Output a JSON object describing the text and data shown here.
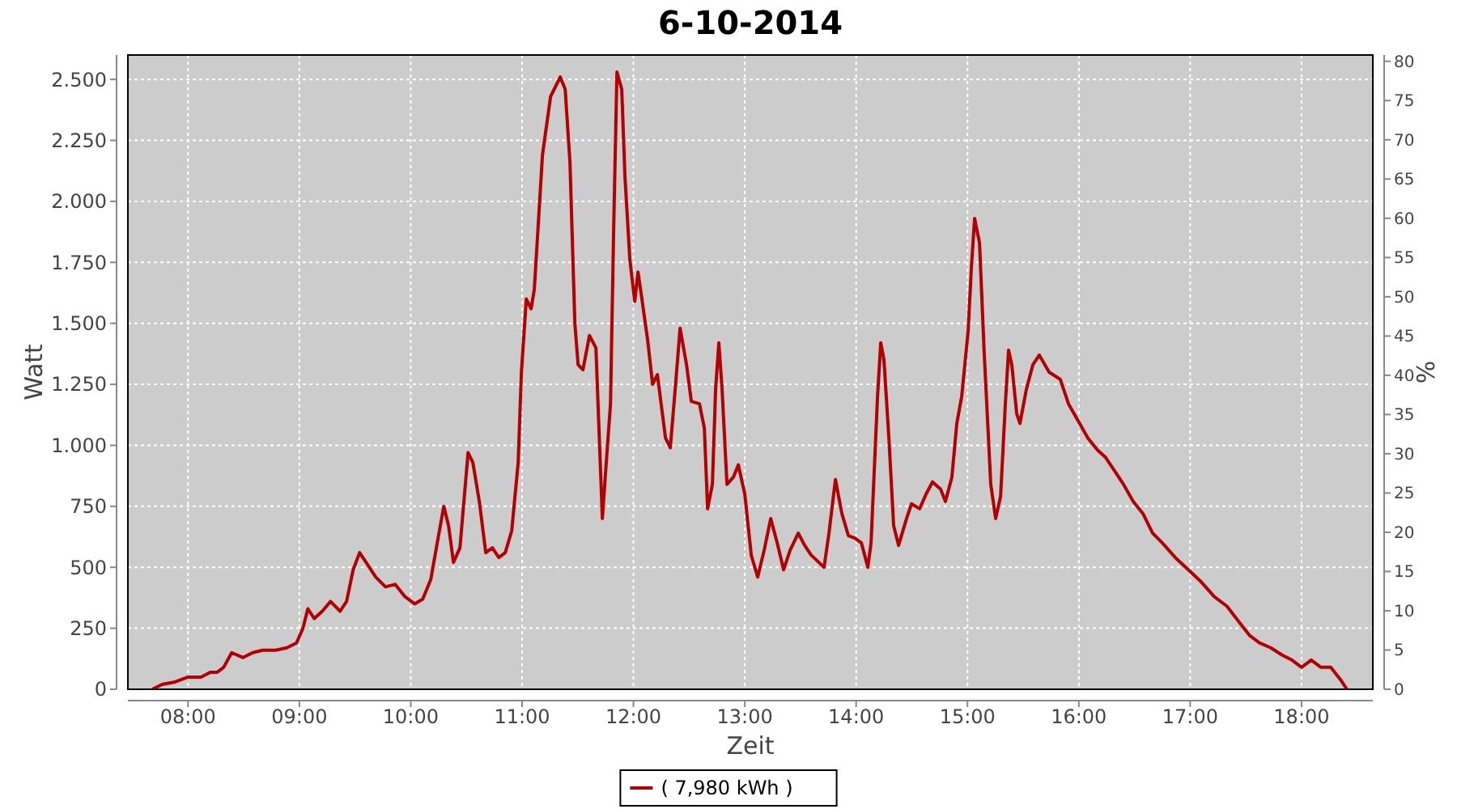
{
  "chart_data": {
    "type": "line",
    "title": "6-10-2014",
    "xlabel": "Zeit",
    "ylabel": "Watt",
    "y2label": "%",
    "xlim": [
      7.46,
      18.64
    ],
    "xticks": [
      {
        "value": 8,
        "label": "08:00"
      },
      {
        "value": 9,
        "label": "09:00"
      },
      {
        "value": 10,
        "label": "10:00"
      },
      {
        "value": 11,
        "label": "11:00"
      },
      {
        "value": 12,
        "label": "12:00"
      },
      {
        "value": 13,
        "label": "13:00"
      },
      {
        "value": 14,
        "label": "14:00"
      },
      {
        "value": 15,
        "label": "15:00"
      },
      {
        "value": 16,
        "label": "16:00"
      },
      {
        "value": 17,
        "label": "17:00"
      },
      {
        "value": 18,
        "label": "18:00"
      }
    ],
    "ylim": [
      0,
      2600
    ],
    "yticks": [
      0,
      250,
      500,
      750,
      {
        "value": 1000,
        "label": "1.000"
      },
      {
        "value": 1250,
        "label": "1.250"
      },
      {
        "value": 1500,
        "label": "1.500"
      },
      {
        "value": 1750,
        "label": "1.750"
      },
      {
        "value": 2000,
        "label": "2.000"
      },
      {
        "value": 2250,
        "label": "2.250"
      },
      {
        "value": 2500,
        "label": "2.500"
      }
    ],
    "y2lim": [
      0,
      80.8
    ],
    "y2ticks": [
      0,
      5,
      10,
      15,
      20,
      25,
      30,
      35,
      40,
      45,
      50,
      55,
      60,
      65,
      70,
      75,
      80
    ],
    "grid": true,
    "legend": "bottom",
    "x": [
      7.68,
      7.767,
      7.884,
      8,
      8.116,
      8.203,
      8.262,
      8.32,
      8.392,
      8.494,
      8.581,
      8.669,
      8.785,
      8.887,
      8.974,
      9.032,
      9.076,
      9.134,
      9.206,
      9.279,
      9.366,
      9.424,
      9.483,
      9.541,
      9.599,
      9.686,
      9.773,
      9.86,
      9.948,
      10.035,
      10.108,
      10.18,
      10.238,
      10.297,
      10.34,
      10.384,
      10.442,
      10.515,
      10.558,
      10.616,
      10.674,
      10.733,
      10.791,
      10.849,
      10.907,
      10.965,
      10.994,
      11.038,
      11.081,
      11.11,
      11.183,
      11.256,
      11.343,
      11.387,
      11.43,
      11.474,
      11.503,
      11.547,
      11.605,
      11.663,
      11.721,
      11.75,
      11.794,
      11.823,
      11.852,
      11.895,
      11.924,
      11.968,
      12.012,
      12.041,
      12.07,
      12.128,
      12.172,
      12.215,
      12.288,
      12.331,
      12.375,
      12.419,
      12.477,
      12.52,
      12.593,
      12.637,
      12.666,
      12.709,
      12.738,
      12.767,
      12.796,
      12.84,
      12.898,
      12.942,
      13,
      13.058,
      13.116,
      13.174,
      13.233,
      13.291,
      13.349,
      13.407,
      13.48,
      13.538,
      13.596,
      13.712,
      13.756,
      13.814,
      13.872,
      13.93,
      13.988,
      14.047,
      14.105,
      14.134,
      14.192,
      14.221,
      14.25,
      14.294,
      14.337,
      14.381,
      14.453,
      14.497,
      14.57,
      14.628,
      14.686,
      14.759,
      14.802,
      14.86,
      14.904,
      14.948,
      15.006,
      15.035,
      15.064,
      15.108,
      15.151,
      15.209,
      15.253,
      15.297,
      15.34,
      15.369,
      15.398,
      15.442,
      15.471,
      15.529,
      15.587,
      15.645,
      15.733,
      15.834,
      15.907,
      15.994,
      16.081,
      16.169,
      16.241,
      16.314,
      16.401,
      16.488,
      16.576,
      16.663,
      16.75,
      16.866,
      16.983,
      17.099,
      17.215,
      17.331,
      17.448,
      17.535,
      17.622,
      17.724,
      17.826,
      17.913,
      18,
      18.087,
      18.174,
      18.262,
      18.349,
      18.407
    ],
    "series": [
      {
        "name": "( 7,980 kWh )",
        "color": "#b40000",
        "values": [
          0,
          20,
          30,
          50,
          50,
          70,
          70,
          90,
          150,
          130,
          150,
          160,
          160,
          170,
          190,
          250,
          330,
          290,
          320,
          360,
          320,
          360,
          490,
          560,
          520,
          460,
          420,
          430,
          380,
          350,
          370,
          450,
          600,
          750,
          670,
          520,
          580,
          970,
          930,
          770,
          560,
          580,
          540,
          560,
          650,
          930,
          1300,
          1600,
          1560,
          1640,
          2190,
          2430,
          2510,
          2460,
          2160,
          1500,
          1330,
          1310,
          1450,
          1400,
          700,
          890,
          1170,
          1900,
          2530,
          2460,
          2100,
          1760,
          1590,
          1710,
          1620,
          1430,
          1250,
          1290,
          1030,
          990,
          1230,
          1480,
          1330,
          1180,
          1170,
          1070,
          740,
          840,
          1230,
          1420,
          1230,
          840,
          870,
          920,
          800,
          550,
          460,
          570,
          700,
          600,
          490,
          570,
          640,
          590,
          550,
          500,
          640,
          860,
          720,
          630,
          620,
          600,
          500,
          600,
          1200,
          1420,
          1350,
          1030,
          670,
          590,
          700,
          760,
          740,
          800,
          850,
          820,
          770,
          870,
          1090,
          1200,
          1470,
          1730,
          1930,
          1830,
          1370,
          840,
          700,
          790,
          1170,
          1390,
          1330,
          1130,
          1090,
          1230,
          1330,
          1370,
          1300,
          1270,
          1170,
          1100,
          1030,
          980,
          950,
          900,
          840,
          770,
          720,
          640,
          600,
          540,
          490,
          440,
          380,
          340,
          270,
          220,
          190,
          170,
          140,
          120,
          90,
          120,
          90,
          90,
          40,
          0
        ]
      }
    ]
  }
}
